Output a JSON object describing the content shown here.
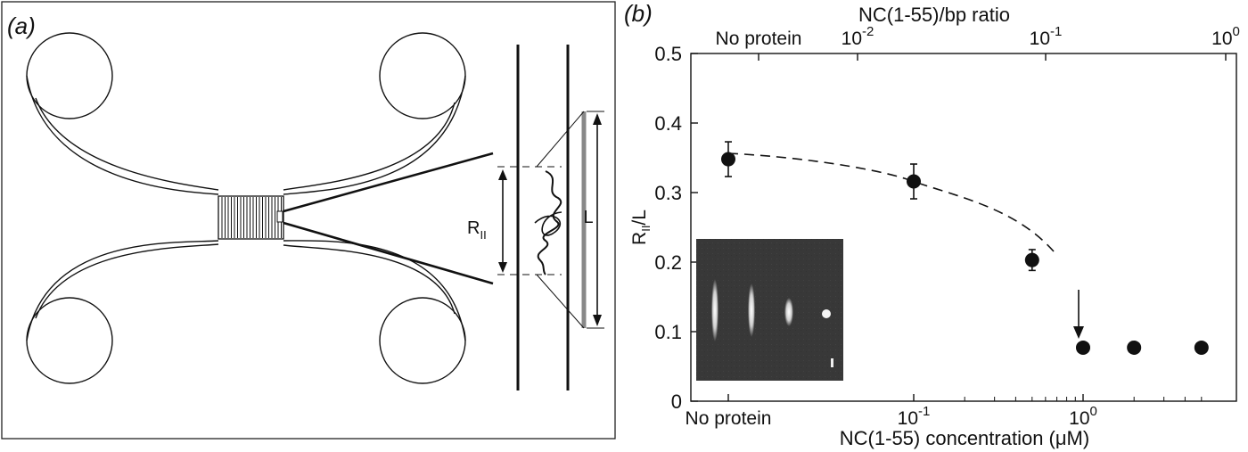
{
  "panel_a": {
    "label": "(a)",
    "radius_label": "R",
    "radius_sub": "II",
    "length_label": "L"
  },
  "chart_data": {
    "type": "scatter",
    "panel_label": "(b)",
    "xlabel": "NC(1-55) concentration (μM)",
    "top_xlabel": "NC(1-55)/bp ratio",
    "ylabel": "R",
    "ylabel_sub": "II",
    "ylabel_suffix": "/L",
    "x_scale": "log",
    "ylim": [
      0,
      0.5
    ],
    "yticks": [
      "0",
      "0.1",
      "0.2",
      "0.3",
      "0.4",
      "0.5"
    ],
    "bottom_ticks": [
      {
        "text": "No protein"
      },
      {
        "base": "10",
        "exp": "-1"
      },
      {
        "base": "10",
        "exp": "0"
      }
    ],
    "top_ticks": [
      {
        "text": "No protein"
      },
      {
        "base": "10",
        "exp": "-2"
      },
      {
        "base": "10",
        "exp": "-1"
      },
      {
        "base": "10",
        "exp": "0"
      }
    ],
    "points": [
      {
        "x": "No protein",
        "y": 0.348,
        "err": 0.025
      },
      {
        "x": 0.1,
        "y": 0.316,
        "err": 0.025
      },
      {
        "x": 0.5,
        "y": 0.203,
        "err": 0.015
      },
      {
        "x": 1,
        "y": 0.077,
        "err": 0
      },
      {
        "x": 2,
        "y": 0.077,
        "err": 0
      },
      {
        "x": 5,
        "y": 0.077,
        "err": 0
      }
    ],
    "fit": "dashed trend line",
    "annotation": "downward arrow near 0.8 μM",
    "inset": "fluorescence image of DNA bands"
  }
}
